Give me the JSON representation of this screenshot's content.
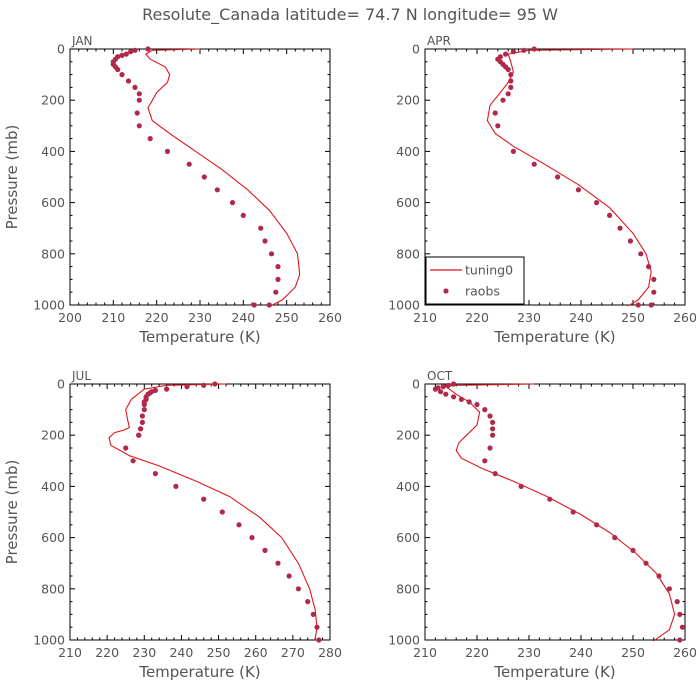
{
  "title": "Resolute_Canada  latitude= 74.7 N longitude= 95 W",
  "colors": {
    "model": "#e0161c",
    "obs": "#b0284a"
  },
  "chart_data": [
    {
      "type": "line",
      "panel": "JAN",
      "xlabel": "Temperature (K)",
      "ylabel": "Pressure (mb)",
      "xlim": [
        200,
        260
      ],
      "ylim": [
        1000,
        0
      ],
      "xticks": [
        200,
        210,
        220,
        230,
        240,
        250,
        260
      ],
      "yticks": [
        0,
        200,
        400,
        600,
        800,
        1000
      ],
      "legend": null,
      "series": [
        {
          "name": "tuning0",
          "kind": "line",
          "x": [
            230,
            219,
            217.5,
            218.5,
            222,
            223,
            222.5,
            220,
            218,
            219,
            223,
            229,
            235,
            241,
            246,
            250,
            252.5,
            253,
            252,
            249,
            245.5
          ],
          "y": [
            0,
            5,
            20,
            40,
            70,
            100,
            130,
            170,
            230,
            280,
            330,
            400,
            470,
            550,
            630,
            720,
            800,
            880,
            930,
            980,
            1010
          ]
        },
        {
          "name": "raobs",
          "kind": "scatter",
          "x": [
            218,
            215,
            214,
            213,
            212,
            211,
            210.5,
            210,
            210,
            210.5,
            211,
            212,
            213.5,
            215,
            216,
            216,
            215.5,
            216,
            218.5,
            222.5,
            227.5,
            231,
            234,
            237.5,
            240,
            244,
            245,
            246.5,
            248,
            248,
            247.5,
            246,
            242.5
          ],
          "y": [
            0,
            5,
            10,
            20,
            25,
            30,
            40,
            50,
            60,
            70,
            80,
            100,
            125,
            150,
            175,
            200,
            250,
            300,
            350,
            400,
            450,
            500,
            550,
            600,
            650,
            700,
            750,
            800,
            850,
            900,
            950,
            1000,
            1000
          ]
        }
      ]
    },
    {
      "type": "line",
      "panel": "APR",
      "xlabel": "Temperature (K)",
      "ylabel": "",
      "xlim": [
        210,
        260
      ],
      "ylim": [
        1000,
        0
      ],
      "xticks": [
        210,
        220,
        230,
        240,
        250,
        260
      ],
      "yticks": [
        0,
        200,
        400,
        600,
        800,
        1000
      ],
      "legend": "lower-left",
      "series": [
        {
          "name": "tuning0",
          "kind": "line",
          "x": [
            250,
            230,
            226,
            226.5,
            227,
            226,
            224.5,
            222.5,
            222,
            223.5,
            227,
            233,
            239.5,
            245.5,
            250,
            252.5,
            253.5,
            253,
            251,
            248.5
          ],
          "y": [
            0,
            5,
            20,
            50,
            90,
            130,
            170,
            220,
            280,
            330,
            380,
            450,
            530,
            620,
            720,
            800,
            870,
            930,
            980,
            1010
          ]
        },
        {
          "name": "raobs",
          "kind": "scatter",
          "x": [
            231,
            229,
            227,
            225.5,
            224.5,
            224,
            224.5,
            225,
            225.5,
            226,
            226.5,
            226.5,
            226.5,
            226,
            225,
            223.5,
            224,
            227,
            231,
            235.5,
            239.5,
            243,
            245.5,
            247.5,
            249.5,
            251.5,
            253,
            254,
            254,
            253.5,
            251
          ],
          "y": [
            0,
            5,
            10,
            20,
            30,
            40,
            50,
            60,
            70,
            80,
            100,
            125,
            150,
            175,
            200,
            250,
            300,
            400,
            450,
            500,
            550,
            600,
            650,
            700,
            750,
            800,
            850,
            900,
            950,
            1000,
            1000
          ]
        }
      ]
    },
    {
      "type": "line",
      "panel": "JUL",
      "xlabel": "Temperature (K)",
      "ylabel": "Pressure (mb)",
      "xlim": [
        210,
        280
      ],
      "ylim": [
        1000,
        0
      ],
      "xticks": [
        210,
        220,
        230,
        240,
        250,
        260,
        270,
        280
      ],
      "yticks": [
        0,
        200,
        400,
        600,
        800,
        1000
      ],
      "legend": null,
      "series": [
        {
          "name": "tuning0",
          "kind": "line",
          "x": [
            252,
            236,
            230,
            226.5,
            225,
            225.5,
            226,
            224.5,
            222,
            220.5,
            221,
            226,
            234,
            244,
            253,
            261,
            267,
            271.5,
            274.5,
            276,
            276.5,
            276
          ],
          "y": [
            0,
            5,
            20,
            60,
            100,
            140,
            170,
            180,
            190,
            210,
            240,
            280,
            320,
            380,
            440,
            520,
            600,
            700,
            800,
            880,
            950,
            1000
          ]
        },
        {
          "name": "raobs",
          "kind": "scatter",
          "x": [
            249,
            246,
            241.5,
            236,
            233,
            232,
            231.5,
            231,
            230.5,
            230.5,
            230,
            230,
            230,
            229.5,
            229.5,
            229,
            229,
            228.5,
            228.5,
            225,
            227,
            233,
            238.5,
            246,
            251,
            255.5,
            259,
            262.5,
            266,
            269,
            271.5,
            274,
            275.5,
            276.5,
            277
          ],
          "y": [
            0,
            5,
            10,
            20,
            25,
            30,
            35,
            40,
            50,
            60,
            70,
            80,
            100,
            125,
            150,
            175,
            175,
            200,
            200,
            250,
            300,
            350,
            400,
            450,
            500,
            550,
            600,
            650,
            700,
            750,
            800,
            850,
            900,
            950,
            1000
          ]
        }
      ]
    },
    {
      "type": "line",
      "panel": "OCT",
      "xlabel": "Temperature (K)",
      "ylabel": "",
      "xlim": [
        210,
        260
      ],
      "ylim": [
        1000,
        0
      ],
      "xticks": [
        210,
        220,
        230,
        240,
        250,
        260
      ],
      "yticks": [
        0,
        200,
        400,
        600,
        800,
        1000
      ],
      "legend": null,
      "series": [
        {
          "name": "tuning0",
          "kind": "line",
          "x": [
            231,
            216,
            214,
            216,
            218.5,
            220.5,
            220,
            218,
            216.5,
            216,
            217,
            221,
            227,
            233.5,
            240,
            245.5,
            250.5,
            254.5,
            257,
            258,
            257,
            253.5
          ],
          "y": [
            0,
            5,
            10,
            40,
            70,
            110,
            160,
            200,
            230,
            260,
            290,
            330,
            380,
            440,
            510,
            580,
            660,
            740,
            820,
            900,
            960,
            1010
          ]
        },
        {
          "name": "raobs",
          "kind": "scatter",
          "x": [
            215.5,
            214.5,
            213.5,
            212.5,
            212,
            213,
            214,
            215.5,
            217,
            218.5,
            220,
            221.5,
            222.5,
            223,
            223,
            223,
            222.5,
            221.5,
            223.5,
            228.5,
            234,
            238.5,
            243,
            246.5,
            250,
            252.5,
            255,
            257,
            258.5,
            259,
            259.5,
            259
          ],
          "y": [
            0,
            5,
            10,
            15,
            20,
            30,
            40,
            50,
            60,
            70,
            80,
            100,
            125,
            150,
            175,
            200,
            250,
            300,
            350,
            400,
            450,
            500,
            550,
            600,
            650,
            700,
            750,
            800,
            850,
            900,
            950,
            1000
          ]
        }
      ]
    }
  ]
}
